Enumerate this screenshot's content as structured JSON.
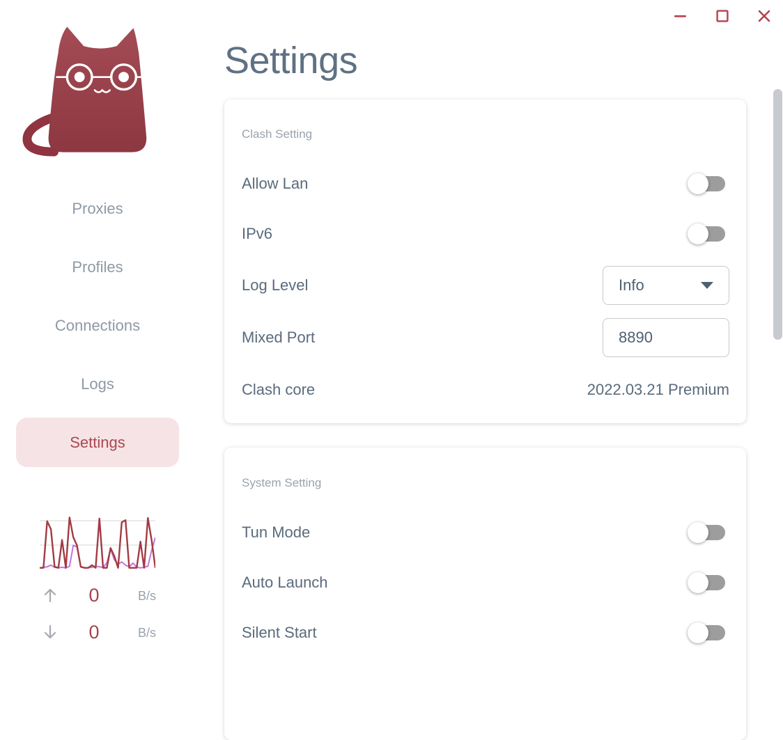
{
  "window": {
    "controls": [
      {
        "name": "minimize"
      },
      {
        "name": "maximize"
      },
      {
        "name": "close"
      }
    ]
  },
  "page": {
    "title": "Settings"
  },
  "sidebar": {
    "logo": "clash-cat-logo",
    "items": [
      {
        "label": "Proxies",
        "active": false
      },
      {
        "label": "Profiles",
        "active": false
      },
      {
        "label": "Connections",
        "active": false
      },
      {
        "label": "Logs",
        "active": false
      },
      {
        "label": "Settings",
        "active": true
      }
    ],
    "traffic": {
      "up": {
        "value": "0",
        "unit": "B/s"
      },
      "down": {
        "value": "0",
        "unit": "B/s"
      },
      "chart": {
        "type": "line",
        "grid": true,
        "ylim": [
          0,
          100
        ],
        "series": [
          {
            "name": "purple-series",
            "color": "#c873dc",
            "width": 2,
            "values": [
              3,
              4,
              5,
              8,
              4,
              3,
              4,
              3,
              6,
              45,
              42,
              5,
              3,
              3,
              4,
              6,
              5,
              4,
              12,
              38,
              18,
              10,
              14,
              8,
              5,
              12,
              4,
              3,
              4,
              6,
              35,
              60
            ]
          },
          {
            "name": "red-series",
            "color": "#a23a44",
            "width": 2.4,
            "values": [
              3,
              3,
              90,
              75,
              5,
              3,
              55,
              3,
              97,
              60,
              45,
              5,
              3,
              3,
              8,
              3,
              95,
              3,
              3,
              40,
              25,
              3,
              88,
              92,
              3,
              3,
              3,
              52,
              3,
              96,
              55,
              3
            ]
          }
        ]
      }
    }
  },
  "cards": [
    {
      "header": "Clash Setting",
      "rows": [
        {
          "label": "Allow Lan",
          "control": "toggle",
          "state": "off"
        },
        {
          "label": "IPv6",
          "control": "toggle",
          "state": "off"
        },
        {
          "label": "Log Level",
          "control": "select",
          "value": "Info"
        },
        {
          "label": "Mixed Port",
          "control": "input",
          "value": "8890"
        },
        {
          "label": "Clash core",
          "control": "text",
          "value": "2022.03.21 Premium"
        }
      ]
    },
    {
      "header": "System Setting",
      "rows": [
        {
          "label": "Tun Mode",
          "control": "toggle",
          "state": "off"
        },
        {
          "label": "Auto Launch",
          "control": "toggle",
          "state": "off"
        },
        {
          "label": "Silent Start",
          "control": "toggle",
          "state": "off"
        }
      ]
    }
  ],
  "colors": {
    "accent_red": "#a94850",
    "window_control_red": "#b5414b",
    "active_pill_bg": "#f6e3e6",
    "text_primary": "#5a6b7c",
    "text_title": "#5f7183",
    "text_muted": "#9ba2ab",
    "nav_inactive": "#8e99a6",
    "toggle_off_track": "#9d9d9d",
    "chart_red": "#a23a44",
    "chart_purple": "#c873dc",
    "gridline": "#e3e3e3",
    "scrollbar_thumb": "#c7cad0"
  }
}
